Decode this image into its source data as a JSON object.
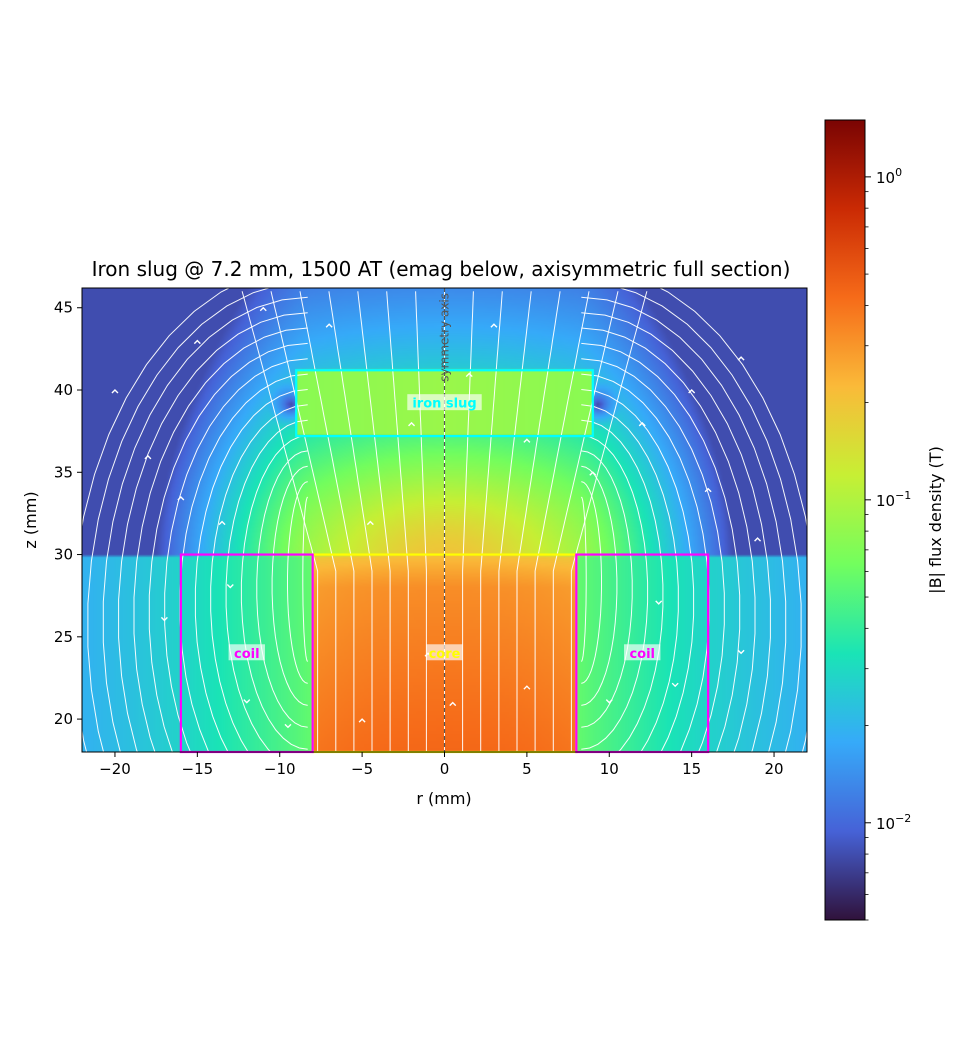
{
  "chart_data": {
    "type": "heatmap",
    "title": "Iron slug @ 7.2 mm, 1500 AT  (emag below, axisymmetric full section)",
    "xlabel": "r (mm)",
    "ylabel": "z (mm)",
    "xlim": [
      -22,
      22
    ],
    "ylim": [
      18,
      46.2
    ],
    "xticks": [
      -20,
      -15,
      -10,
      -5,
      0,
      5,
      10,
      15,
      20
    ],
    "xtick_labels": [
      "−20",
      "−15",
      "−10",
      "−5",
      "0",
      "5",
      "10",
      "15",
      "20"
    ],
    "yticks": [
      20,
      25,
      30,
      35,
      40,
      45
    ],
    "ytick_labels": [
      "20",
      "25",
      "30",
      "35",
      "40",
      "45"
    ],
    "colorbar": {
      "label": "|B| flux density (T)",
      "scale": "log",
      "range": [
        0.005,
        1.5
      ],
      "ticks": [
        0.01,
        0.1,
        1
      ],
      "tick_labels": [
        {
          "base": "10",
          "exp": "−2"
        },
        {
          "base": "10",
          "exp": "−1"
        },
        {
          "base": "10",
          "exp": "0"
        }
      ],
      "colormap": "turbo",
      "colors": [
        "#30123b",
        "#4662d7",
        "#36aaf9",
        "#1ae4b6",
        "#72fe5e",
        "#c7ef34",
        "#faba39",
        "#f66b19",
        "#ca2a04",
        "#7a0403"
      ]
    },
    "regions": [
      {
        "name": "iron slug",
        "color": "#00ffff",
        "r": [
          -9,
          9
        ],
        "z": [
          37.2,
          41.2
        ]
      },
      {
        "name": "core",
        "color": "#ffff00",
        "r": [
          -8,
          8
        ],
        "z": [
          18,
          30
        ]
      },
      {
        "name": "coil",
        "color": "#ff00ff",
        "r": [
          -16,
          -8
        ],
        "z": [
          18,
          30
        ]
      },
      {
        "name": "coil",
        "color": "#ff00ff",
        "r": [
          8,
          16
        ],
        "z": [
          18,
          30
        ]
      }
    ],
    "annotations": [
      {
        "text": "iron slug",
        "r": 0,
        "z": 39.2,
        "color": "#00ffff"
      },
      {
        "text": "core",
        "r": 0,
        "z": 24,
        "color": "#ffff00"
      },
      {
        "text": "coil",
        "r": -12,
        "z": 24,
        "color": "#ff00ff"
      },
      {
        "text": "coil",
        "r": 12,
        "z": 24,
        "color": "#ff00ff"
      },
      {
        "text": "symmetry axis",
        "r": 0,
        "z": 43.2,
        "color": "#555555"
      }
    ],
    "symmetry_axis_r": 0,
    "streamlines": "white",
    "grid": false
  }
}
